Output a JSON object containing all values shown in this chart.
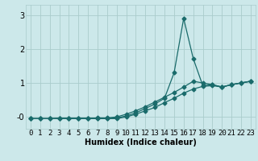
{
  "title": "",
  "xlabel": "Humidex (Indice chaleur)",
  "bg_color": "#cce8ea",
  "grid_color": "#aacccc",
  "line_color": "#1a6b6b",
  "xlim": [
    -0.5,
    23.5
  ],
  "ylim": [
    -0.35,
    3.3
  ],
  "yticks": [
    0,
    1,
    2,
    3
  ],
  "ytick_labels": [
    "-0",
    "1",
    "2",
    "3"
  ],
  "xticks": [
    0,
    1,
    2,
    3,
    4,
    5,
    6,
    7,
    8,
    9,
    10,
    11,
    12,
    13,
    14,
    15,
    16,
    17,
    18,
    19,
    20,
    21,
    22,
    23
  ],
  "line1_x": [
    0,
    1,
    2,
    3,
    4,
    5,
    6,
    7,
    8,
    9,
    10,
    11,
    12,
    13,
    14,
    15,
    16,
    17,
    18,
    19,
    20,
    21,
    22,
    23
  ],
  "line1_y": [
    -0.05,
    -0.05,
    -0.05,
    -0.05,
    -0.05,
    -0.05,
    -0.05,
    -0.05,
    -0.05,
    -0.05,
    0.0,
    0.08,
    0.18,
    0.28,
    0.42,
    0.55,
    0.7,
    0.82,
    0.9,
    0.92,
    0.88,
    0.95,
    1.0,
    1.05
  ],
  "line2_x": [
    0,
    1,
    2,
    3,
    4,
    5,
    6,
    7,
    8,
    9,
    10,
    11,
    12,
    13,
    14,
    15,
    16,
    17,
    18,
    19,
    20,
    21,
    22,
    23
  ],
  "line2_y": [
    -0.05,
    -0.05,
    -0.05,
    -0.04,
    -0.04,
    -0.04,
    -0.04,
    -0.04,
    -0.04,
    -0.03,
    0.03,
    0.12,
    0.25,
    0.38,
    0.55,
    1.3,
    2.9,
    1.72,
    0.92,
    0.95,
    0.88,
    0.95,
    1.0,
    1.05
  ],
  "line3_x": [
    0,
    1,
    2,
    3,
    4,
    5,
    6,
    7,
    8,
    9,
    10,
    11,
    12,
    13,
    14,
    15,
    16,
    17,
    18,
    19,
    20,
    21,
    22,
    23
  ],
  "line3_y": [
    -0.05,
    -0.05,
    -0.05,
    -0.04,
    -0.04,
    -0.04,
    -0.04,
    -0.03,
    -0.03,
    0.0,
    0.08,
    0.18,
    0.3,
    0.44,
    0.58,
    0.72,
    0.88,
    1.05,
    1.0,
    0.95,
    0.88,
    0.95,
    1.0,
    1.05
  ],
  "markersize": 2.5,
  "linewidth": 0.9,
  "xlabel_fontsize": 7,
  "tick_fontsize": 6.5
}
